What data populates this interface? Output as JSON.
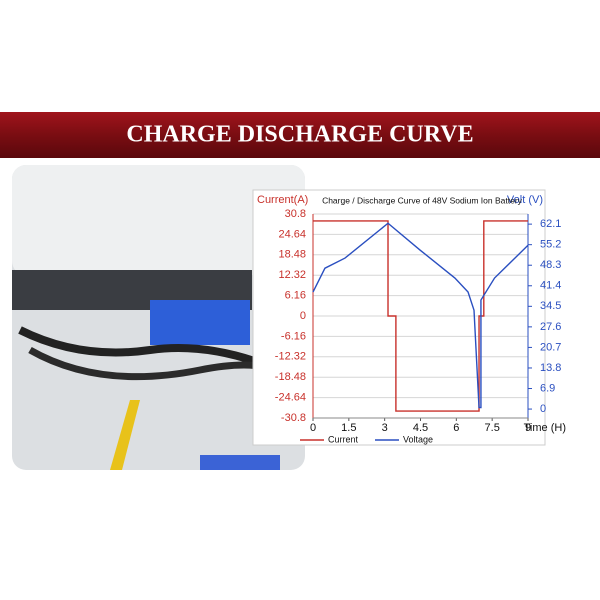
{
  "banner": "CHARGE DISCHARGE CURVE",
  "chart_data": {
    "type": "line",
    "title": "Charge / Discharge Curve of 48V Sodium Ion Battery",
    "y_label": "Current(A)",
    "y2_label": "Volt (V)",
    "x_label": "Time (H)",
    "xlim": [
      0,
      9
    ],
    "xticks": [
      0,
      1.5,
      3,
      4.5,
      6,
      7.5,
      9
    ],
    "ylim": [
      -30.8,
      30.8
    ],
    "yticks": [
      30.8,
      24.64,
      18.48,
      12.32,
      6.16,
      0,
      -6.16,
      -12.32,
      -18.48,
      -24.64,
      -30.8
    ],
    "y2lim": [
      -3.0,
      65.5
    ],
    "y2ticks": [
      62.1,
      55.2,
      48.3,
      41.4,
      34.5,
      27.6,
      20.7,
      13.8,
      6.9,
      0
    ],
    "grid": true,
    "legend": "bottom",
    "series": [
      {
        "name": "Current",
        "color": "#c8312b",
        "x": [
          0,
          3.14,
          3.14,
          3.47,
          3.47,
          6.95,
          6.95,
          7.15,
          7.15,
          9
        ],
        "values": [
          28.7,
          28.7,
          0,
          0,
          -28.7,
          -28.7,
          0,
          0,
          28.7,
          28.7
        ]
      },
      {
        "name": "Voltage",
        "color": "#2a4fc0",
        "axis": "y2",
        "x": [
          0,
          0.5,
          1.34,
          3.14,
          4.48,
          5.94,
          6.49,
          6.74,
          6.95,
          7.03,
          7.03,
          7.6,
          9
        ],
        "values": [
          39.3,
          47.3,
          50.7,
          62.4,
          53.4,
          44.0,
          39.3,
          33.2,
          0.5,
          0.5,
          36.6,
          44.0,
          55.0
        ]
      }
    ]
  }
}
